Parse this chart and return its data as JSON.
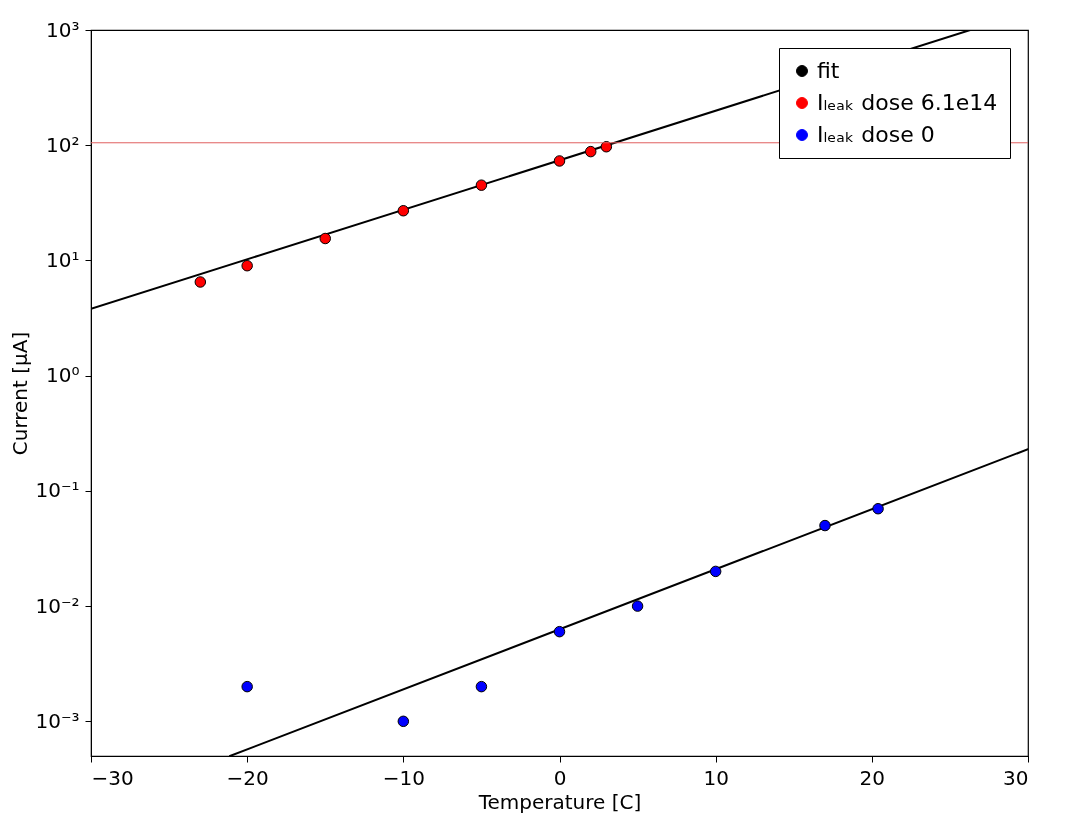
{
  "chart_data": {
    "type": "scatter",
    "xlabel": "Temperature [C]",
    "ylabel": "Current [μA]",
    "log": "y",
    "grid": false,
    "legend": "top right",
    "marker": "circle",
    "line_style": "solid",
    "xlim": [
      -30,
      30
    ],
    "xticks": [
      {
        "value": -30,
        "label": "−30"
      },
      {
        "value": -20,
        "label": "−20"
      },
      {
        "value": -10,
        "label": "−10"
      },
      0,
      10,
      20,
      30
    ],
    "ylim": [
      0.0005,
      1000
    ],
    "yticks": [
      {
        "value": 0.001,
        "label": "10⁻³"
      },
      {
        "value": 0.01,
        "label": "10⁻²"
      },
      {
        "value": 0.1,
        "label": "10⁻¹"
      },
      {
        "value": 1,
        "label": "10⁰"
      },
      {
        "value": 10,
        "label": "10¹"
      },
      {
        "value": 100,
        "label": "10²"
      },
      {
        "value": 1000,
        "label": "10³"
      }
    ],
    "ref_lines": [
      {
        "axis": "y",
        "value": 105,
        "color": "#e06060"
      }
    ],
    "series": [
      {
        "name": "fit",
        "type": "line",
        "marker": "none",
        "color": "#000000",
        "x": [
          -30,
          26.3
        ],
        "values": [
          3.8,
          1000
        ]
      },
      {
        "type": "line",
        "marker": "none",
        "color": "#000000",
        "x": [
          -21.1,
          30
        ],
        "values": [
          0.0005,
          0.23
        ]
      },
      {
        "name": "Iₗₑₐₖ dose 6.1e14",
        "type": "scatter",
        "color": "#ff0000",
        "x": [
          -23,
          -20,
          -15,
          -10,
          -5,
          0,
          2,
          3
        ],
        "values": [
          6.5,
          9,
          15.5,
          27,
          45,
          73,
          88,
          97
        ]
      },
      {
        "name": "Iₗₑₐₖ dose 0",
        "type": "scatter",
        "color": "#0000ff",
        "x": [
          -20,
          -10,
          -5,
          0,
          5,
          10,
          17,
          20.4
        ],
        "values": [
          0.002,
          0.001,
          0.002,
          0.006,
          0.01,
          0.02,
          0.05,
          0.07
        ]
      }
    ]
  }
}
